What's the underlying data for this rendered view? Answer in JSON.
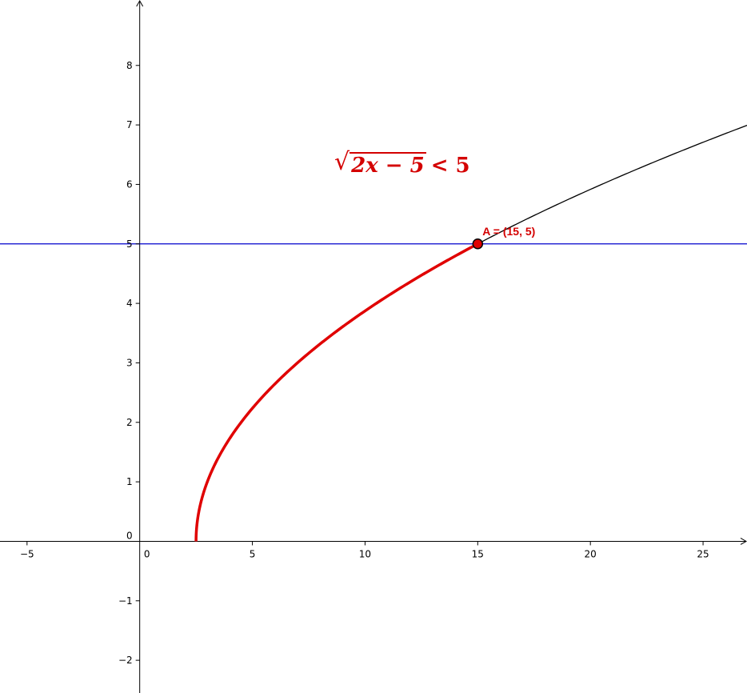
{
  "chart_data": {
    "type": "line",
    "title": "",
    "xlabel": "",
    "ylabel": "",
    "xlim": [
      -6.2,
      26.95
    ],
    "ylim": [
      -2.55,
      9.1
    ],
    "x_ticks": [
      -5,
      0,
      5,
      10,
      15,
      20,
      25
    ],
    "x_tick_labels": [
      "−5",
      "0",
      "5",
      "10",
      "15",
      "20",
      "25"
    ],
    "y_ticks": [
      -2,
      -1,
      0,
      1,
      2,
      3,
      4,
      5,
      6,
      7,
      8
    ],
    "y_tick_labels": [
      "−2",
      "−1",
      "0",
      "1",
      "2",
      "3",
      "4",
      "5",
      "6",
      "7",
      "8"
    ],
    "grid": false,
    "annotation": {
      "radicand": "2x − 5",
      "relation": "< 5"
    },
    "series": [
      {
        "kind": "function",
        "expression": "sqrt(2x-5)",
        "x_domain": [
          2.5,
          26.95
        ],
        "color": "#000000"
      },
      {
        "kind": "function-highlight",
        "expression": "sqrt(2x-5)",
        "x_domain": [
          2.5,
          15
        ],
        "color": "#e00000"
      },
      {
        "kind": "horizontal-line",
        "y": 5,
        "color": "#0000cc"
      }
    ],
    "points": [
      {
        "label": "A = (15, 5)",
        "x": 15,
        "y": 5,
        "color": "#e00000"
      }
    ]
  }
}
